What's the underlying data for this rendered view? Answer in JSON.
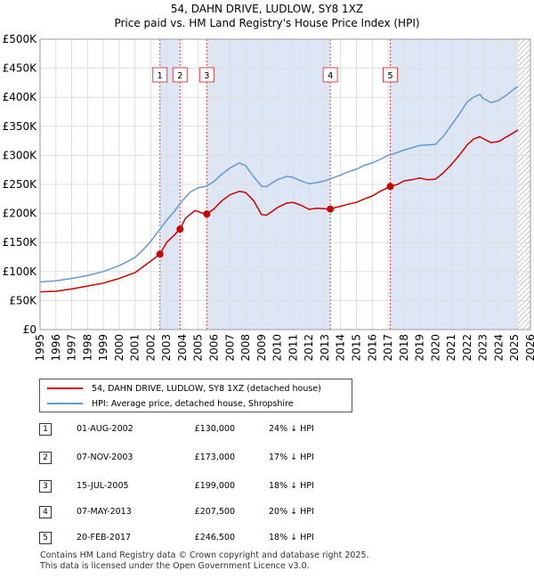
{
  "chart_data": {
    "type": "line",
    "title": "54, DAHN DRIVE, LUDLOW, SY8 1XZ",
    "subtitle": "Price paid vs. HM Land Registry's House Price Index (HPI)",
    "xlim": [
      1995,
      2026
    ],
    "ylim": [
      0,
      500000
    ],
    "x_ticks": [
      1995,
      1996,
      1997,
      1998,
      1999,
      2000,
      2001,
      2002,
      2003,
      2004,
      2005,
      2006,
      2007,
      2008,
      2009,
      2010,
      2011,
      2012,
      2013,
      2014,
      2015,
      2016,
      2017,
      2018,
      2019,
      2020,
      2021,
      2022,
      2023,
      2024,
      2025,
      2026
    ],
    "y_ticks": [
      {
        "value": 0,
        "label": "£0"
      },
      {
        "value": 50000,
        "label": "£50K"
      },
      {
        "value": 100000,
        "label": "£100K"
      },
      {
        "value": 150000,
        "label": "£150K"
      },
      {
        "value": 200000,
        "label": "£200K"
      },
      {
        "value": 250000,
        "label": "£250K"
      },
      {
        "value": 300000,
        "label": "£300K"
      },
      {
        "value": 350000,
        "label": "£350K"
      },
      {
        "value": 400000,
        "label": "£400K"
      },
      {
        "value": 450000,
        "label": "£450K"
      },
      {
        "value": 500000,
        "label": "£500K"
      }
    ],
    "shaded_ranges": [
      [
        2002.58,
        2003.85
      ],
      [
        2005.54,
        2013.35
      ],
      [
        2017.14,
        2025.2
      ]
    ],
    "hatch_start": 2025.2,
    "series": [
      {
        "name": "54, DAHN DRIVE, LUDLOW, SY8 1XZ (detached house)",
        "color": "#cc0000",
        "x": [
          1995,
          1996,
          1997,
          1998,
          1999,
          2000,
          2001,
          2001.5,
          2002,
          2002.58,
          2003,
          2003.5,
          2003.85,
          2004.2,
          2004.8,
          2005.2,
          2005.54,
          2006,
          2006.5,
          2007,
          2007.6,
          2008,
          2008.5,
          2009,
          2009.3,
          2009.7,
          2010,
          2010.6,
          2011,
          2011.5,
          2012,
          2012.5,
          2013,
          2013.35,
          2013.8,
          2014.5,
          2015,
          2015.5,
          2016,
          2016.5,
          2017.14,
          2017.6,
          2018,
          2018.5,
          2019,
          2019.5,
          2020,
          2020.5,
          2021,
          2021.5,
          2022,
          2022.4,
          2022.8,
          2023,
          2023.5,
          2024,
          2024.5,
          2025,
          2025.2
        ],
        "values": [
          65000,
          66000,
          70000,
          75000,
          80000,
          88000,
          98000,
          108000,
          118000,
          130000,
          150000,
          163000,
          173000,
          192000,
          205000,
          201000,
          199000,
          208000,
          222000,
          232000,
          238000,
          236000,
          222000,
          198000,
          197000,
          204000,
          210000,
          218000,
          219000,
          214000,
          207000,
          209000,
          208000,
          207500,
          211000,
          216000,
          219000,
          225000,
          230000,
          238000,
          246500,
          250000,
          256000,
          258000,
          261000,
          258000,
          259000,
          270000,
          284000,
          300000,
          318000,
          328000,
          332000,
          329000,
          322000,
          324000,
          332000,
          340000,
          344000
        ]
      },
      {
        "name": "HPI: Average price, detached house, Shropshire",
        "color": "#6699cc",
        "x": [
          1995,
          1996,
          1997,
          1998,
          1999,
          2000,
          2001,
          2001.5,
          2002,
          2002.5,
          2003,
          2003.5,
          2004,
          2004.5,
          2005,
          2005.5,
          2006,
          2006.5,
          2007,
          2007.6,
          2008,
          2008.5,
          2009,
          2009.3,
          2009.7,
          2010,
          2010.6,
          2011,
          2011.5,
          2012,
          2012.5,
          2013,
          2013.5,
          2014,
          2014.5,
          2015,
          2015.5,
          2016,
          2016.5,
          2017,
          2017.5,
          2018,
          2018.5,
          2019,
          2019.5,
          2020,
          2020.5,
          2021,
          2021.5,
          2022,
          2022.4,
          2022.8,
          2023,
          2023.5,
          2024,
          2024.5,
          2025,
          2025.2
        ],
        "values": [
          82000,
          84000,
          88000,
          93000,
          100000,
          110000,
          124000,
          137000,
          152000,
          170000,
          188000,
          204000,
          222000,
          237000,
          244000,
          247000,
          255000,
          268000,
          278000,
          287000,
          282000,
          263000,
          247000,
          246000,
          253000,
          258000,
          264000,
          262000,
          256000,
          251000,
          253000,
          256000,
          261000,
          266000,
          272000,
          276000,
          283000,
          287000,
          293000,
          300000,
          304000,
          309000,
          313000,
          317000,
          318000,
          319000,
          333000,
          352000,
          371000,
          392000,
          400000,
          405000,
          398000,
          391000,
          395000,
          404000,
          415000,
          418000
        ]
      }
    ],
    "sales": [
      {
        "label": "1",
        "x": 2002.58,
        "price": 130000
      },
      {
        "label": "2",
        "x": 2003.85,
        "price": 173000
      },
      {
        "label": "3",
        "x": 2005.54,
        "price": 199000
      },
      {
        "label": "4",
        "x": 2013.35,
        "price": 207500
      },
      {
        "label": "5",
        "x": 2017.14,
        "price": 246500
      }
    ]
  },
  "legend": {
    "property_label": "54, DAHN DRIVE, LUDLOW, SY8 1XZ (detached house)",
    "hpi_label": "HPI: Average price, detached house, Shropshire"
  },
  "transactions": [
    {
      "num": "1",
      "date": "01-AUG-2002",
      "price": "£130,000",
      "hpi": "24% ↓ HPI"
    },
    {
      "num": "2",
      "date": "07-NOV-2003",
      "price": "£173,000",
      "hpi": "17% ↓ HPI"
    },
    {
      "num": "3",
      "date": "15-JUL-2005",
      "price": "£199,000",
      "hpi": "18% ↓ HPI"
    },
    {
      "num": "4",
      "date": "07-MAY-2013",
      "price": "£207,500",
      "hpi": "20% ↓ HPI"
    },
    {
      "num": "5",
      "date": "20-FEB-2017",
      "price": "£246,500",
      "hpi": "18% ↓ HPI"
    }
  ],
  "footer": {
    "line1": "Contains HM Land Registry data © Crown copyright and database right 2025.",
    "line2": "This data is licensed under the Open Government Licence v3.0."
  },
  "colors": {
    "property": "#cc0000",
    "hpi": "#6699cc",
    "shade": "#dde6f4",
    "grid": "#dddddd"
  }
}
